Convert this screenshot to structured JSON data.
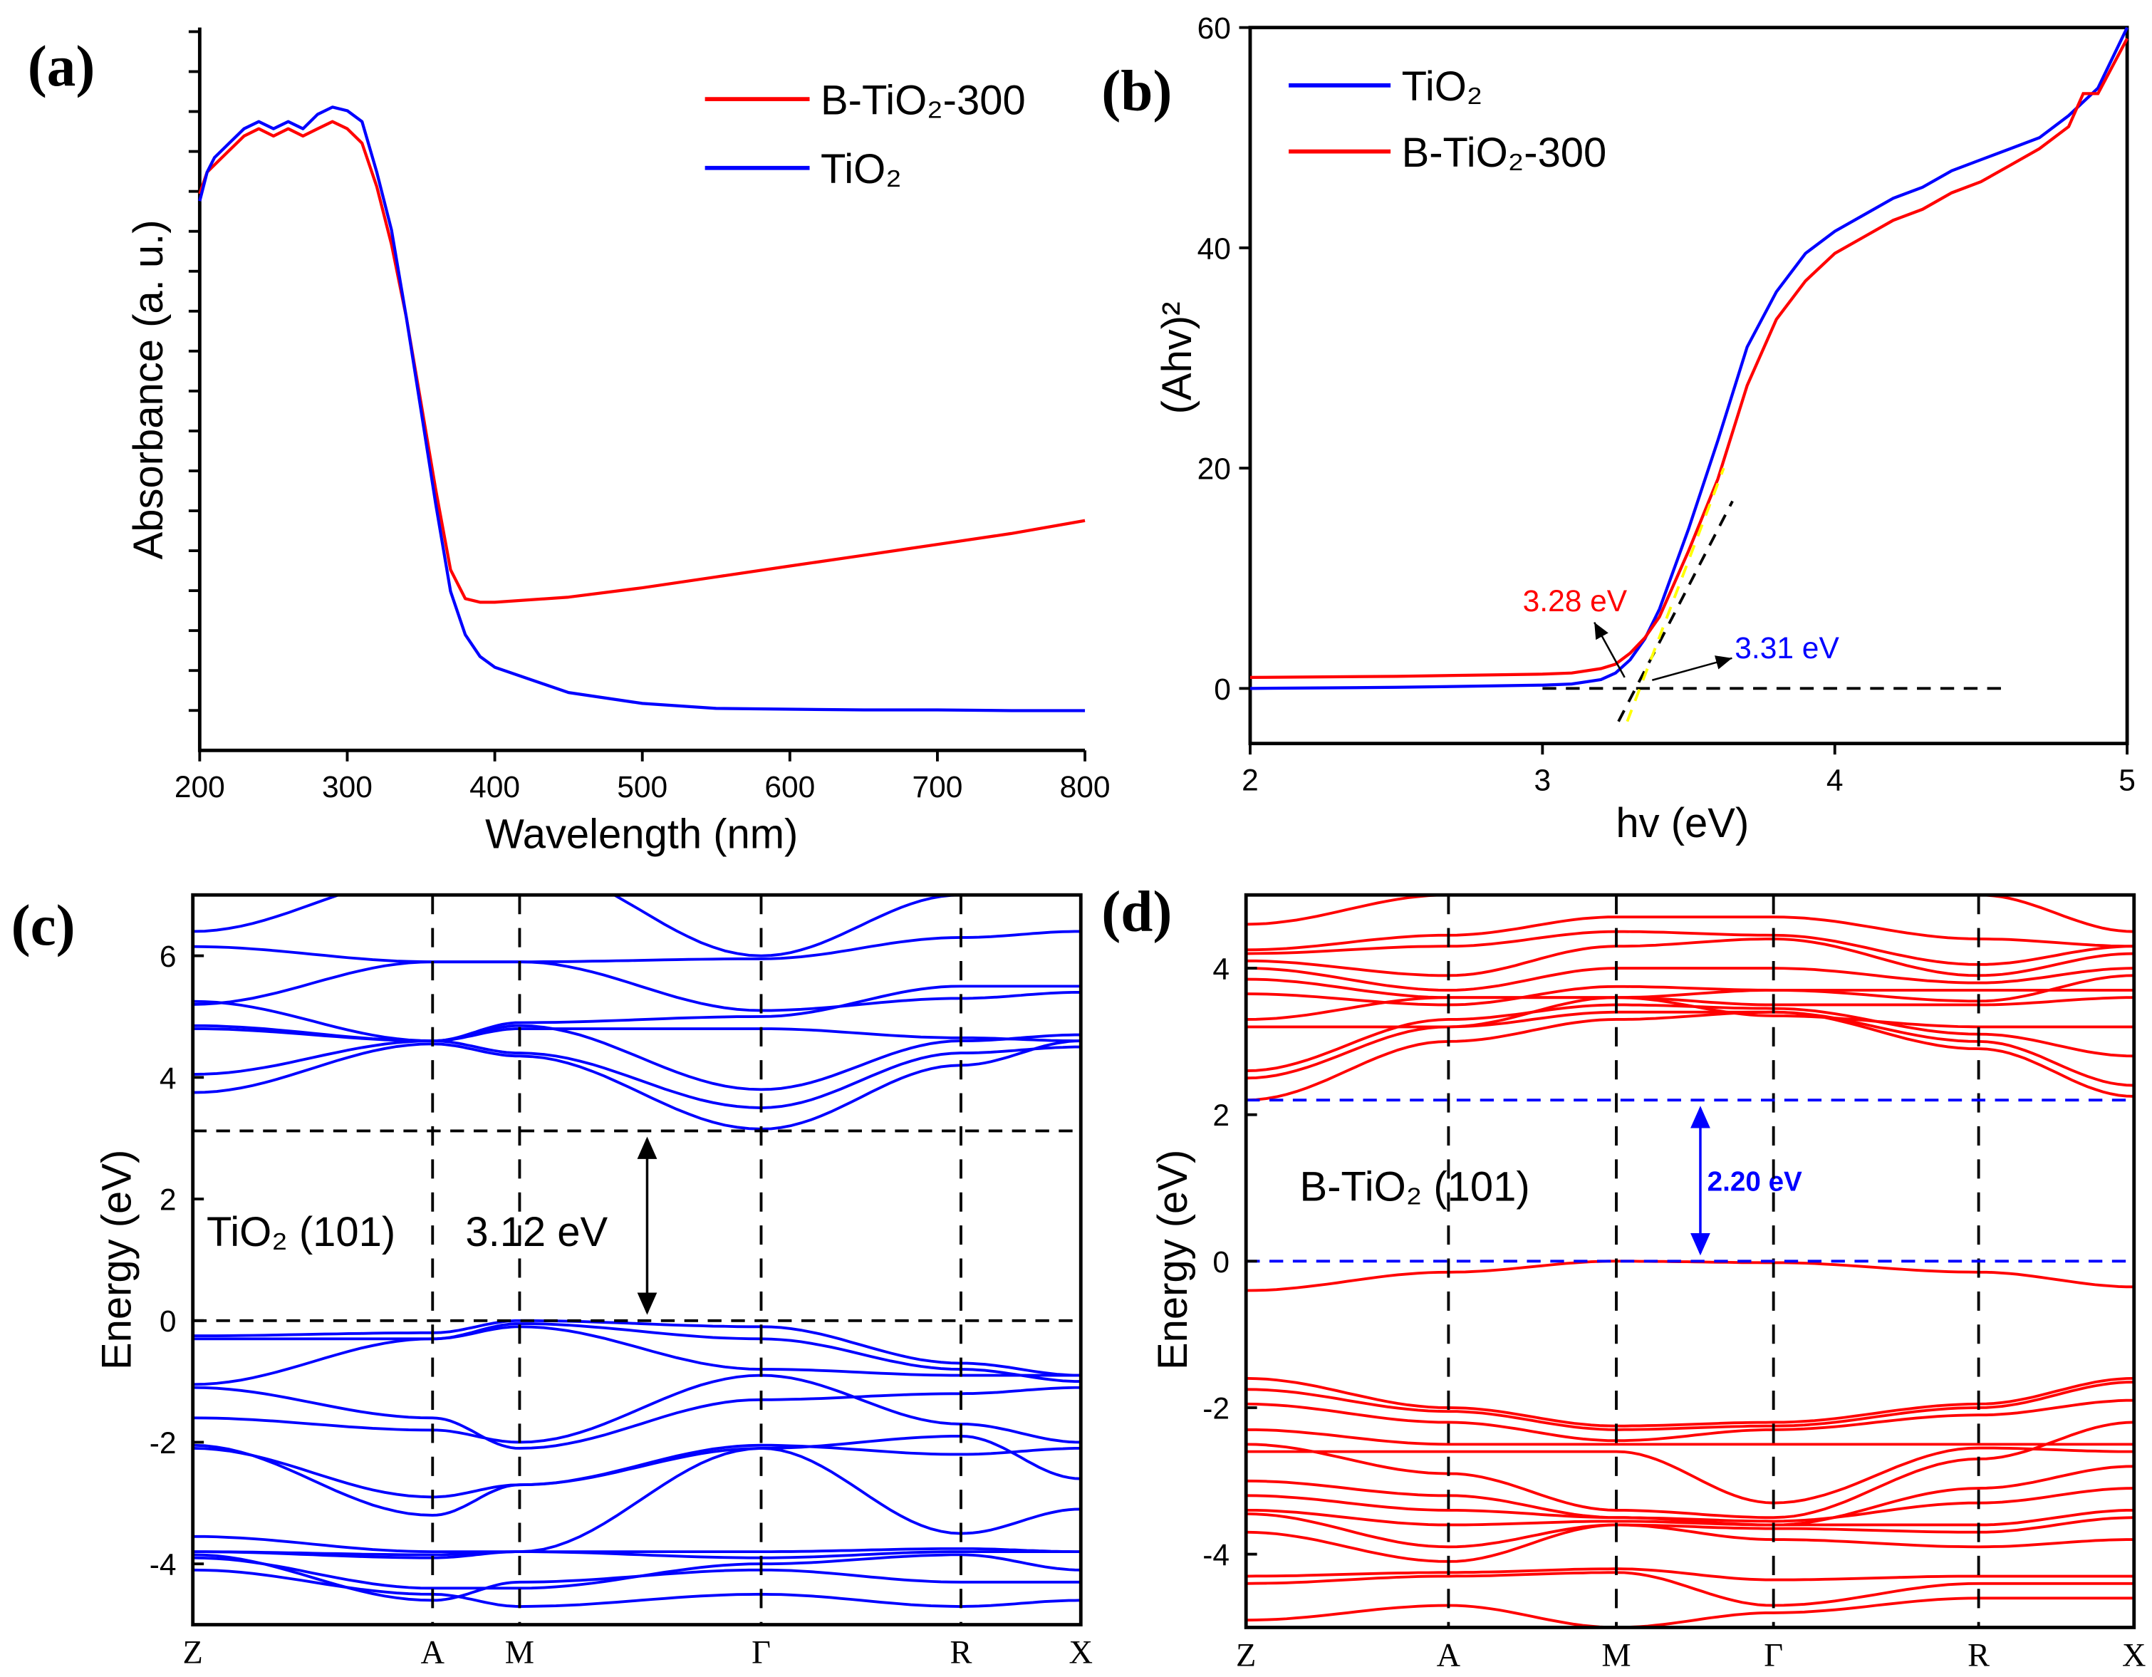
{
  "chart_data": [
    {
      "id": "a",
      "type": "line",
      "panel_label": "(a)",
      "xlabel": "Wavelength (nm)",
      "ylabel": "Absorbance (a. u.)",
      "xlim": [
        200,
        800
      ],
      "ylim": [
        0,
        1
      ],
      "xticks": [
        200,
        300,
        400,
        500,
        600,
        700,
        800
      ],
      "legend_position": "top-right",
      "series": [
        {
          "name": "B-TiO₂-300",
          "color": "#ff0000",
          "x": [
            200,
            205,
            210,
            220,
            230,
            240,
            250,
            260,
            270,
            280,
            290,
            300,
            310,
            320,
            330,
            340,
            350,
            360,
            370,
            380,
            390,
            400,
            450,
            500,
            550,
            600,
            650,
            700,
            750,
            800
          ],
          "y": [
            0.77,
            0.8,
            0.81,
            0.83,
            0.85,
            0.86,
            0.85,
            0.86,
            0.85,
            0.86,
            0.87,
            0.86,
            0.84,
            0.78,
            0.7,
            0.6,
            0.48,
            0.36,
            0.25,
            0.21,
            0.205,
            0.205,
            0.212,
            0.225,
            0.24,
            0.255,
            0.27,
            0.285,
            0.3,
            0.318
          ]
        },
        {
          "name": "TiO₂",
          "color": "#0000ff",
          "x": [
            200,
            205,
            210,
            220,
            230,
            240,
            250,
            260,
            270,
            280,
            290,
            300,
            310,
            320,
            330,
            340,
            350,
            360,
            370,
            380,
            390,
            400,
            450,
            500,
            550,
            600,
            650,
            700,
            750,
            800
          ],
          "y": [
            0.76,
            0.8,
            0.82,
            0.84,
            0.86,
            0.87,
            0.86,
            0.87,
            0.86,
            0.88,
            0.89,
            0.885,
            0.87,
            0.8,
            0.72,
            0.6,
            0.47,
            0.34,
            0.22,
            0.16,
            0.13,
            0.115,
            0.08,
            0.065,
            0.058,
            0.057,
            0.056,
            0.056,
            0.055,
            0.055
          ]
        }
      ]
    },
    {
      "id": "b",
      "type": "line",
      "panel_label": "(b)",
      "xlabel": "hv (eV)",
      "ylabel": "(Ahv)²",
      "xlim": [
        2,
        5
      ],
      "ylim": [
        -5,
        60
      ],
      "xticks": [
        2,
        3,
        4,
        5
      ],
      "yticks": [
        0,
        20,
        40,
        60
      ],
      "legend_position": "top-left",
      "series": [
        {
          "name": "TiO₂",
          "color": "#0000ff",
          "x": [
            2,
            2.5,
            3,
            3.1,
            3.2,
            3.25,
            3.3,
            3.35,
            3.4,
            3.5,
            3.6,
            3.7,
            3.8,
            3.9,
            4.0,
            4.1,
            4.2,
            4.3,
            4.4,
            4.5,
            4.6,
            4.7,
            4.8,
            4.9,
            5.0
          ],
          "y": [
            0,
            0.1,
            0.3,
            0.4,
            0.8,
            1.4,
            2.6,
            4.5,
            7.2,
            14.5,
            22.5,
            31,
            36,
            39.5,
            41.5,
            43,
            44.5,
            45.5,
            47,
            48,
            49,
            50,
            52,
            54.5,
            60
          ]
        },
        {
          "name": "B-TiO₂-300",
          "color": "#ff0000",
          "x": [
            2,
            2.5,
            3,
            3.1,
            3.2,
            3.25,
            3.3,
            3.35,
            3.4,
            3.5,
            3.6,
            3.7,
            3.8,
            3.9,
            4.0,
            4.1,
            4.2,
            4.3,
            4.4,
            4.5,
            4.6,
            4.7,
            4.8,
            4.85,
            4.9,
            5.0
          ],
          "y": [
            1,
            1.1,
            1.3,
            1.4,
            1.8,
            2.2,
            3.2,
            4.6,
            6.5,
            12.5,
            19,
            27.5,
            33.5,
            37,
            39.5,
            41,
            42.5,
            43.5,
            45,
            46,
            47.5,
            49,
            51,
            54,
            54,
            59
          ]
        }
      ],
      "annotations": [
        {
          "text": "3.28 eV",
          "color": "#ff0000"
        },
        {
          "text": "3.31 eV",
          "color": "#0000ff"
        }
      ],
      "tangent_lines": [
        {
          "color": "#000000",
          "x": [
            3.26,
            3.65
          ],
          "y": [
            -3,
            17
          ]
        },
        {
          "color": "#ffff00",
          "x": [
            3.29,
            3.62
          ],
          "y": [
            -3,
            20
          ]
        }
      ],
      "baseline": {
        "x": [
          3.0,
          4.6
        ],
        "y": 0
      }
    },
    {
      "id": "c",
      "type": "line",
      "panel_label": "(c)",
      "ylabel": "Energy (eV)",
      "ylim": [
        -5,
        7
      ],
      "yticks": [
        -4,
        -2,
        0,
        2,
        4,
        6
      ],
      "kpoints": [
        "Z",
        "A",
        "M",
        "Γ",
        "R",
        "X"
      ],
      "kpos": [
        0,
        0.27,
        0.368,
        0.64,
        0.865,
        1
      ],
      "color": "#0000ff",
      "annotation": "TiO₂ (101)",
      "gap_label": "3.12 eV",
      "gap": [
        0,
        3.12
      ],
      "bands": [
        [
          3.75,
          4.55,
          4.35,
          3.15,
          4.2,
          4.6
        ],
        [
          4.05,
          4.6,
          4.4,
          3.5,
          4.4,
          4.5
        ],
        [
          4.8,
          4.6,
          4.85,
          3.8,
          4.6,
          4.7
        ],
        [
          4.85,
          4.6,
          4.8,
          4.8,
          4.65,
          4.6
        ],
        [
          5.25,
          4.6,
          4.9,
          5.0,
          5.5,
          5.5
        ],
        [
          5.2,
          5.9,
          5.9,
          5.1,
          5.3,
          5.4
        ],
        [
          6.15,
          5.9,
          5.9,
          5.95,
          6.3,
          6.4
        ],
        [
          6.4,
          7.3,
          7.5,
          6.0,
          7.0,
          7.2
        ],
        [
          -0.25,
          -0.2,
          0,
          -0.1,
          -0.7,
          -0.9
        ],
        [
          -0.3,
          -0.3,
          -0.05,
          -0.3,
          -0.8,
          -1.0
        ],
        [
          -1.05,
          -0.3,
          -0.1,
          -0.8,
          -0.9,
          -0.9
        ],
        [
          -1.1,
          -1.6,
          -2.1,
          -1.3,
          -1.2,
          -1.1
        ],
        [
          -1.6,
          -1.8,
          -2.0,
          -0.9,
          -1.7,
          -2.0
        ],
        [
          -2.1,
          -2.9,
          -2.7,
          -2.05,
          -2.2,
          -2.1
        ],
        [
          -2.05,
          -3.2,
          -2.7,
          -2.1,
          -1.9,
          -2.6
        ],
        [
          -3.8,
          -3.9,
          -3.8,
          -2.1,
          -3.5,
          -3.1
        ],
        [
          -3.8,
          -3.85,
          -3.8,
          -3.9,
          -3.8,
          -3.8
        ],
        [
          -3.55,
          -3.8,
          -3.8,
          -3.8,
          -3.75,
          -3.8
        ],
        [
          -3.9,
          -4.4,
          -4.4,
          -4.0,
          -3.85,
          -4.1
        ],
        [
          -3.85,
          -4.6,
          -4.3,
          -4.1,
          -4.3,
          -4.3
        ],
        [
          -4.1,
          -4.5,
          -4.7,
          -4.5,
          -4.7,
          -4.6
        ]
      ]
    },
    {
      "id": "d",
      "type": "line",
      "panel_label": "(d)",
      "ylabel": "Energy (eV)",
      "ylim": [
        -5,
        5
      ],
      "yticks": [
        -4,
        -2,
        0,
        2,
        4
      ],
      "kpoints": [
        "Z",
        "A",
        "M",
        "Γ",
        "R",
        "X"
      ],
      "kpos": [
        0,
        0.228,
        0.417,
        0.594,
        0.825,
        1
      ],
      "color": "#ff0000",
      "annotation": "B-TiO₂ (101)",
      "gap_label": "2.20 eV",
      "gap": [
        0,
        2.2
      ],
      "bands": [
        [
          2.2,
          3.0,
          3.3,
          3.4,
          2.9,
          2.25
        ],
        [
          2.5,
          3.2,
          3.4,
          3.4,
          3.0,
          2.4
        ],
        [
          2.6,
          3.3,
          3.5,
          3.45,
          3.1,
          2.8
        ],
        [
          3.2,
          3.2,
          3.6,
          3.35,
          3.2,
          3.2
        ],
        [
          3.3,
          3.6,
          3.6,
          3.5,
          3.5,
          3.6
        ],
        [
          3.65,
          3.5,
          3.75,
          3.7,
          3.7,
          3.7
        ],
        [
          3.85,
          3.6,
          3.6,
          3.7,
          3.55,
          3.9
        ],
        [
          4.0,
          3.7,
          4.0,
          4.0,
          3.8,
          4.0
        ],
        [
          4.1,
          3.9,
          4.3,
          4.4,
          3.9,
          4.2
        ],
        [
          4.2,
          4.3,
          4.5,
          4.45,
          4.05,
          4.3
        ],
        [
          4.25,
          4.45,
          4.7,
          4.7,
          4.4,
          4.3
        ],
        [
          4.6,
          5.0,
          5.2,
          5.1,
          5.0,
          4.5
        ],
        [
          -0.4,
          -0.15,
          0,
          -0.02,
          -0.15,
          -0.35
        ],
        [
          -1.6,
          -2.0,
          -2.25,
          -2.2,
          -1.95,
          -1.6
        ],
        [
          -1.75,
          -2.05,
          -2.3,
          -2.25,
          -2.0,
          -1.65
        ],
        [
          -1.95,
          -2.2,
          -2.45,
          -2.3,
          -2.1,
          -1.9
        ],
        [
          -2.3,
          -2.5,
          -2.5,
          -2.5,
          -2.5,
          -2.5
        ],
        [
          -2.6,
          -2.6,
          -2.6,
          -3.3,
          -2.55,
          -2.6
        ],
        [
          -2.5,
          -2.9,
          -3.4,
          -3.5,
          -2.7,
          -2.2
        ],
        [
          -3.0,
          -3.2,
          -3.5,
          -3.6,
          -3.1,
          -2.8
        ],
        [
          -3.2,
          -3.4,
          -3.5,
          -3.55,
          -3.3,
          -3.1
        ],
        [
          -3.4,
          -3.6,
          -3.55,
          -3.6,
          -3.6,
          -3.4
        ],
        [
          -3.45,
          -3.9,
          -3.6,
          -3.65,
          -3.7,
          -3.5
        ],
        [
          -3.7,
          -4.1,
          -3.6,
          -3.8,
          -3.9,
          -3.8
        ],
        [
          -4.3,
          -4.25,
          -4.2,
          -4.35,
          -4.3,
          -4.3
        ],
        [
          -4.4,
          -4.3,
          -4.25,
          -4.7,
          -4.4,
          -4.4
        ],
        [
          -4.9,
          -4.7,
          -5.0,
          -4.8,
          -4.6,
          -4.6
        ]
      ]
    }
  ]
}
